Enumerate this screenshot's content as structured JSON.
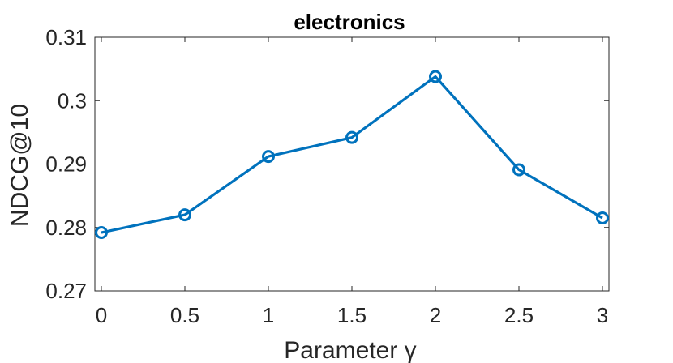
{
  "chart_data": {
    "type": "line",
    "title": "electronics",
    "xlabel": "Parameter γ",
    "ylabel": "NDCG@10",
    "x": [
      0,
      0.5,
      1,
      1.5,
      2,
      2.5,
      3
    ],
    "x_tick_labels": [
      "0",
      "0.5",
      "1",
      "1.5",
      "2",
      "2.5",
      "3"
    ],
    "y_ticks": [
      0.27,
      0.28,
      0.29,
      0.3,
      0.31
    ],
    "y_tick_labels": [
      "0.27",
      "0.28",
      "0.29",
      "0.3",
      "0.31"
    ],
    "xlim": [
      0,
      3
    ],
    "ylim": [
      0.27,
      0.31
    ],
    "grid": false,
    "series": [
      {
        "values": [
          0.2792,
          0.282,
          0.2912,
          0.2942,
          0.3038,
          0.2891,
          0.2815
        ],
        "color": "#0072BD",
        "marker": "circle"
      }
    ]
  }
}
